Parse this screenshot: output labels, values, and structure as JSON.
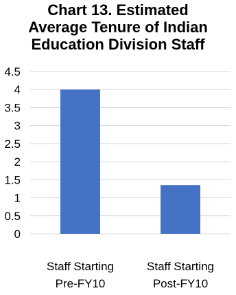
{
  "chart_data": {
    "type": "bar",
    "title_lines": [
      "Chart 13. Estimated",
      "Average Tenure of Indian",
      "Education Division Staff"
    ],
    "categories": [
      [
        "Staff Starting",
        "Pre-FY10"
      ],
      [
        "Staff Starting",
        "Post-FY10"
      ]
    ],
    "values": [
      4.0,
      1.35
    ],
    "ylim": [
      0,
      4.5
    ],
    "yticks": [
      "0",
      "0.5",
      "1",
      "1.5",
      "2",
      "2.5",
      "3",
      "3.5",
      "4",
      "4.5"
    ],
    "grid": true,
    "bar_color": "#4472C4",
    "grid_color": "#D9D9D9"
  }
}
